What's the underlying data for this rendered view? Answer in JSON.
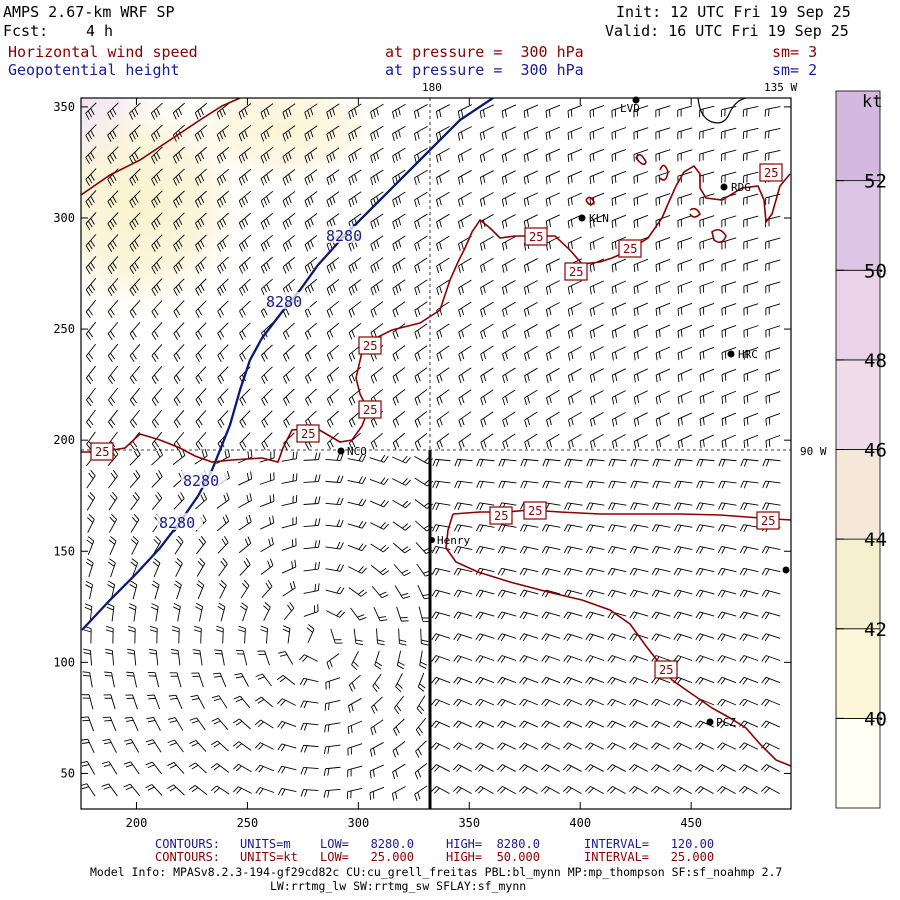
{
  "header": {
    "model_title": "AMPS 2.67-km WRF SP",
    "init": "Init: 12 UTC Fri 19 Sep 25",
    "fcst_label": "Fcst:",
    "fcst_value": "4 h",
    "valid": "Valid: 16 UTC Fri 19 Sep 25",
    "field1_name": "Horizontal wind speed",
    "field1_level": "at pressure =  300 hPa",
    "field1_sm": "sm= 3",
    "field2_name": "Geopotential height",
    "field2_level": "at pressure =  300 hPa",
    "field2_sm": "sm= 2"
  },
  "map": {
    "lon_labels": [
      "180",
      "135 W",
      "90 W"
    ],
    "stations": [
      "LVD",
      "RDG",
      "KLN",
      "HRC",
      "NCO",
      "Henry",
      "PCZ"
    ],
    "colors": {
      "wind_contour": "#8b0000",
      "height_contour": "#0a1a7a"
    }
  },
  "chart_data": {
    "type": "contour-map",
    "xlim": [
      175,
      495
    ],
    "ylim": [
      34,
      354
    ],
    "x_ticks": [
      200,
      250,
      300,
      350,
      400,
      450
    ],
    "y_ticks": [
      50,
      100,
      150,
      200,
      250,
      300,
      350
    ],
    "height_contour_label": "8280",
    "height_contour_labels": [
      "8280",
      "8280",
      "8280",
      "8280"
    ],
    "wind_contour_label": "25",
    "wind_contour_labels": [
      "25",
      "25",
      "25",
      "25",
      "25",
      "25",
      "25",
      "25",
      "25",
      "25",
      "25",
      "25"
    ],
    "colorbar": {
      "unit": "kt",
      "labels": [
        "40",
        "42",
        "44",
        "46",
        "48",
        "50",
        "52"
      ],
      "colors": [
        "#fffff4",
        "#fbf7d8",
        "#f7f0d0",
        "#f5e8d8",
        "#f0dce8",
        "#ead2e8",
        "#dcc4e4",
        "#d3b8e0"
      ]
    }
  },
  "footer": {
    "contours_label": "CONTOURS:",
    "c1_units": "UNITS=m",
    "c1_low": "LOW=   8280.0",
    "c1_high": "HIGH=  8280.0",
    "c1_int": "INTERVAL=   120.00",
    "c2_units": "UNITS=kt",
    "c2_low": "LOW=   25.000",
    "c2_high": "HIGH=  50.000",
    "c2_int": "INTERVAL=   25.000",
    "model_info_1": "Model Info: MPASv8.2.3-194-gf29cd82c CU:cu_grell_freitas PBL:bl_mynn MP:mp_thompson SF:sf_noahmp 2.7",
    "model_info_2": "LW:rrtmg_lw SW:rrtmg_sw SFLAY:sf_mynn"
  }
}
